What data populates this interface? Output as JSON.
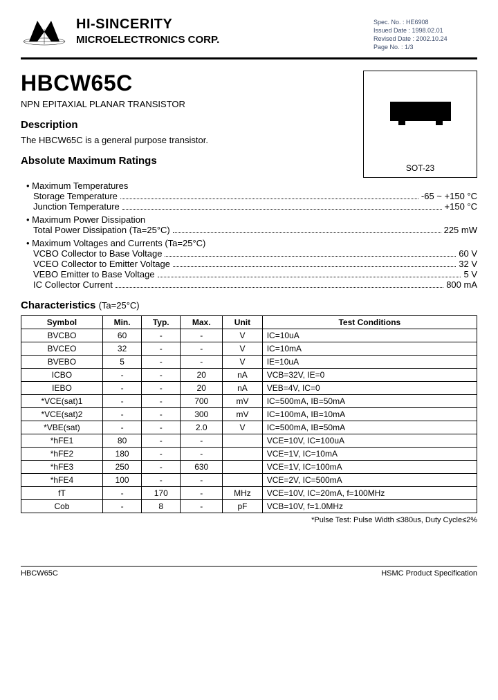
{
  "header": {
    "company_line1": "HI-SINCERITY",
    "company_line2": "MICROELECTRONICS CORP.",
    "spec": {
      "no": "Spec. No. : HE6908",
      "issued": "Issued Date : 1998.02.01",
      "revised": "Revised Date : 2002.10.24",
      "page": "Page No. : 1/3"
    }
  },
  "part": {
    "number": "HBCW65C",
    "type": "NPN EPITAXIAL PLANAR TRANSISTOR",
    "pkg_label": "SOT-23"
  },
  "description": {
    "heading": "Description",
    "text": "The HBCW65C is a general purpose transistor."
  },
  "ratings": {
    "heading": "Absolute Maximum Ratings",
    "groups": [
      {
        "title": "• Maximum Temperatures",
        "rows": [
          {
            "label": "Storage Temperature",
            "value": "-65 ~ +150 °C"
          },
          {
            "label": "Junction Temperature",
            "value": "+150 °C"
          }
        ]
      },
      {
        "title": "• Maximum Power Dissipation",
        "rows": [
          {
            "label": "Total Power Dissipation (Ta=25°C)",
            "value": "225 mW"
          }
        ]
      },
      {
        "title": "• Maximum Voltages and Currents (Ta=25°C)",
        "rows": [
          {
            "label": "VCBO Collector to Base Voltage",
            "value": "60 V"
          },
          {
            "label": "VCEO Collector to Emitter Voltage",
            "value": "32 V"
          },
          {
            "label": "VEBO Emitter to Base Voltage",
            "value": "5 V"
          },
          {
            "label": "IC Collector Current",
            "value": "800 mA"
          }
        ]
      }
    ]
  },
  "char": {
    "heading": "Characteristics",
    "heading_sub": "(Ta=25°C)",
    "columns": [
      "Symbol",
      "Min.",
      "Typ.",
      "Max.",
      "Unit",
      "Test Conditions"
    ],
    "rows": [
      [
        "BVCBO",
        "60",
        "-",
        "-",
        "V",
        "IC=10uA"
      ],
      [
        "BVCEO",
        "32",
        "-",
        "-",
        "V",
        "IC=10mA"
      ],
      [
        "BVEBO",
        "5",
        "-",
        "-",
        "V",
        "IE=10uA"
      ],
      [
        "ICBO",
        "-",
        "-",
        "20",
        "nA",
        "VCB=32V, IE=0"
      ],
      [
        "IEBO",
        "-",
        "-",
        "20",
        "nA",
        "VEB=4V, IC=0"
      ],
      [
        "*VCE(sat)1",
        "-",
        "-",
        "700",
        "mV",
        "IC=500mA, IB=50mA"
      ],
      [
        "*VCE(sat)2",
        "-",
        "-",
        "300",
        "mV",
        "IC=100mA, IB=10mA"
      ],
      [
        "*VBE(sat)",
        "-",
        "-",
        "2.0",
        "V",
        "IC=500mA, IB=50mA"
      ],
      [
        "*hFE1",
        "80",
        "-",
        "-",
        "",
        "VCE=10V, IC=100uA"
      ],
      [
        "*hFE2",
        "180",
        "-",
        "-",
        "",
        "VCE=1V, IC=10mA"
      ],
      [
        "*hFE3",
        "250",
        "-",
        "630",
        "",
        "VCE=1V, IC=100mA"
      ],
      [
        "*hFE4",
        "100",
        "-",
        "-",
        "",
        "VCE=2V, IC=500mA"
      ],
      [
        "fT",
        "-",
        "170",
        "-",
        "MHz",
        "VCE=10V, IC=20mA, f=100MHz"
      ],
      [
        "Cob",
        "-",
        "8",
        "-",
        "pF",
        "VCB=10V, f=1.0MHz"
      ]
    ],
    "footnote": "*Pulse Test: Pulse Width ≤380us, Duty Cycle≤2%"
  },
  "footer": {
    "left": "HBCW65C",
    "right": "HSMC Product Specification"
  }
}
